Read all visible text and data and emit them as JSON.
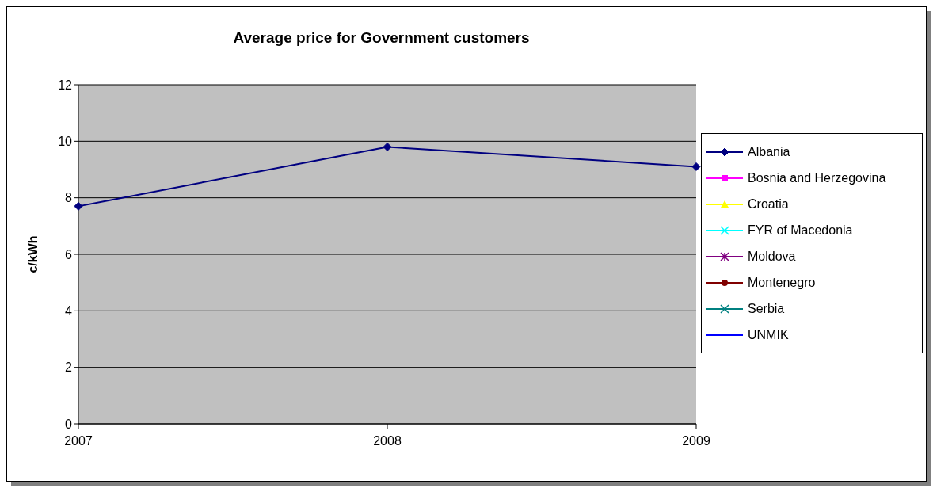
{
  "chart_data": {
    "type": "line",
    "title": "Average price for Government customers",
    "ylabel": "c/kWh",
    "categories": [
      "2007",
      "2008",
      "2009"
    ],
    "ylim": [
      0,
      12
    ],
    "yticks": [
      0,
      2,
      4,
      6,
      8,
      10,
      12
    ],
    "grid": "y",
    "legend": "right",
    "series": [
      {
        "name": "Albania",
        "color": "#000080",
        "marker": "diamond",
        "values": [
          7.7,
          9.8,
          9.1
        ]
      },
      {
        "name": "Bosnia and Herzegovina",
        "color": "#ff00ff",
        "marker": "square",
        "values": [
          null,
          null,
          null
        ]
      },
      {
        "name": "Croatia",
        "color": "#ffff00",
        "marker": "triangle",
        "values": [
          null,
          null,
          null
        ]
      },
      {
        "name": "FYR of Macedonia",
        "color": "#00ffff",
        "marker": "cross",
        "values": [
          null,
          null,
          null
        ]
      },
      {
        "name": "Moldova",
        "color": "#800080",
        "marker": "star",
        "values": [
          null,
          null,
          null
        ]
      },
      {
        "name": "Montenegro",
        "color": "#800000",
        "marker": "circle",
        "values": [
          null,
          null,
          null
        ]
      },
      {
        "name": "Serbia",
        "color": "#008080",
        "marker": "cross",
        "values": [
          null,
          null,
          null
        ]
      },
      {
        "name": "UNMIK",
        "color": "#0000ff",
        "marker": "none",
        "values": [
          null,
          null,
          null
        ]
      }
    ]
  }
}
